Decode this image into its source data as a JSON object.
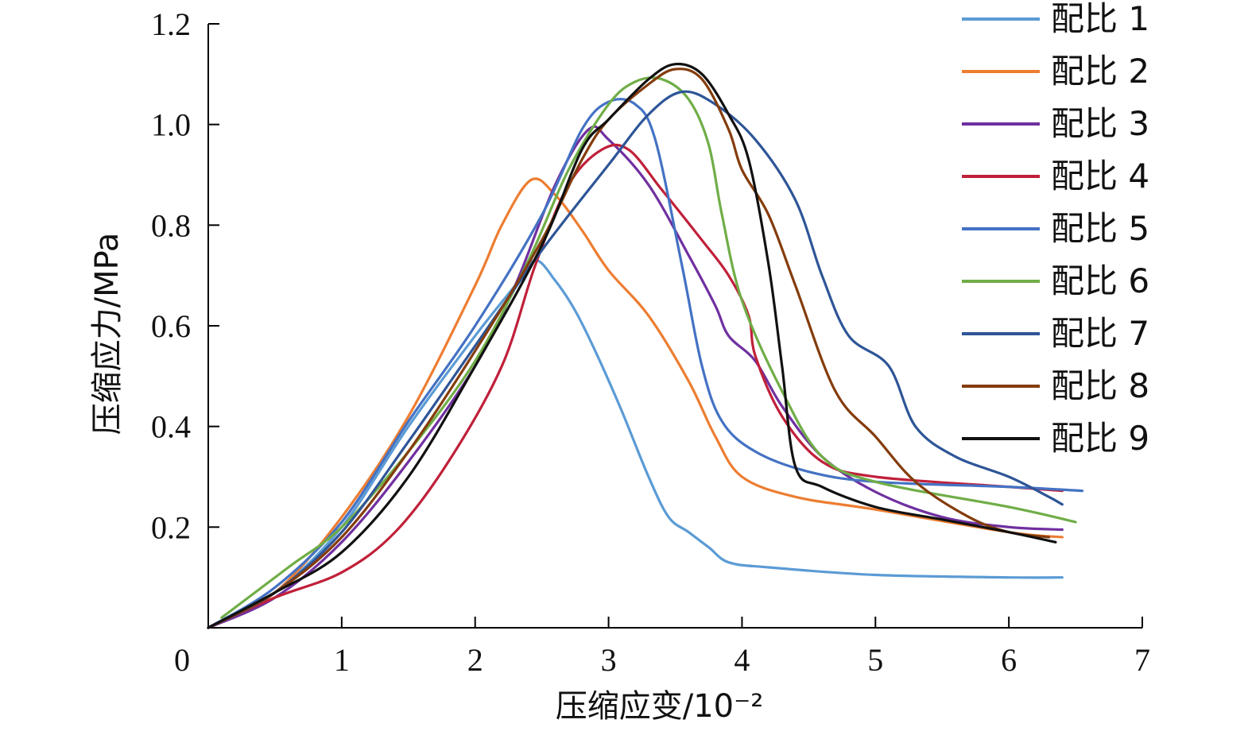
{
  "chart_data": {
    "type": "line",
    "xlabel": "压缩应变/10⁻²",
    "ylabel": "压缩应力/MPa",
    "xlim": [
      0,
      7
    ],
    "ylim": [
      0,
      1.2
    ],
    "x_ticks": [
      "0",
      "1",
      "2",
      "3",
      "4",
      "5",
      "6",
      "7"
    ],
    "y_ticks": [
      "0.2",
      "0.4",
      "0.6",
      "0.8",
      "1.0",
      "1.2"
    ],
    "x_tick_values": [
      0,
      1,
      2,
      3,
      4,
      5,
      6,
      7
    ],
    "y_tick_values": [
      0.2,
      0.4,
      0.6,
      0.8,
      1.0,
      1.2
    ],
    "grid": false,
    "legend_position": "top-right",
    "series": [
      {
        "name": "配比 1",
        "color": "#5b9bd5",
        "points": [
          [
            0,
            0
          ],
          [
            0.5,
            0.07
          ],
          [
            1.0,
            0.2
          ],
          [
            1.5,
            0.4
          ],
          [
            2.0,
            0.58
          ],
          [
            2.3,
            0.68
          ],
          [
            2.45,
            0.73
          ],
          [
            2.6,
            0.69
          ],
          [
            2.75,
            0.63
          ],
          [
            2.9,
            0.55
          ],
          [
            3.1,
            0.43
          ],
          [
            3.3,
            0.3
          ],
          [
            3.45,
            0.22
          ],
          [
            3.6,
            0.19
          ],
          [
            3.75,
            0.16
          ],
          [
            3.9,
            0.13
          ],
          [
            4.2,
            0.12
          ],
          [
            5.0,
            0.105
          ],
          [
            6.0,
            0.1
          ],
          [
            6.4,
            0.1
          ]
        ]
      },
      {
        "name": "配比 2",
        "color": "#ed7d31",
        "points": [
          [
            0,
            0
          ],
          [
            0.5,
            0.07
          ],
          [
            1.0,
            0.22
          ],
          [
            1.5,
            0.42
          ],
          [
            2.0,
            0.68
          ],
          [
            2.2,
            0.8
          ],
          [
            2.42,
            0.89
          ],
          [
            2.6,
            0.86
          ],
          [
            2.8,
            0.79
          ],
          [
            3.0,
            0.71
          ],
          [
            3.3,
            0.62
          ],
          [
            3.6,
            0.49
          ],
          [
            3.8,
            0.38
          ],
          [
            4.0,
            0.3
          ],
          [
            4.4,
            0.26
          ],
          [
            5.0,
            0.235
          ],
          [
            6.0,
            0.19
          ],
          [
            6.4,
            0.18
          ]
        ]
      },
      {
        "name": "配比 3",
        "color": "#7030a0",
        "points": [
          [
            0,
            0
          ],
          [
            0.5,
            0.06
          ],
          [
            1.0,
            0.17
          ],
          [
            1.5,
            0.33
          ],
          [
            2.0,
            0.52
          ],
          [
            2.3,
            0.68
          ],
          [
            2.6,
            0.88
          ],
          [
            2.85,
            0.99
          ],
          [
            3.0,
            0.97
          ],
          [
            3.3,
            0.88
          ],
          [
            3.6,
            0.74
          ],
          [
            3.8,
            0.64
          ],
          [
            3.9,
            0.58
          ],
          [
            4.1,
            0.53
          ],
          [
            4.3,
            0.44
          ],
          [
            4.6,
            0.34
          ],
          [
            5.0,
            0.27
          ],
          [
            5.5,
            0.22
          ],
          [
            6.0,
            0.2
          ],
          [
            6.4,
            0.195
          ]
        ]
      },
      {
        "name": "配比 4",
        "color": "#c0203a",
        "points": [
          [
            0,
            0
          ],
          [
            0.5,
            0.06
          ],
          [
            1.0,
            0.11
          ],
          [
            1.4,
            0.19
          ],
          [
            1.8,
            0.33
          ],
          [
            2.2,
            0.52
          ],
          [
            2.45,
            0.72
          ],
          [
            2.7,
            0.88
          ],
          [
            2.95,
            0.95
          ],
          [
            3.15,
            0.95
          ],
          [
            3.4,
            0.87
          ],
          [
            3.7,
            0.77
          ],
          [
            3.9,
            0.7
          ],
          [
            4.05,
            0.62
          ],
          [
            4.1,
            0.54
          ],
          [
            4.3,
            0.42
          ],
          [
            4.6,
            0.33
          ],
          [
            5.0,
            0.3
          ],
          [
            6.0,
            0.28
          ],
          [
            6.4,
            0.272
          ]
        ]
      },
      {
        "name": "配比 5",
        "color": "#4472c4",
        "points": [
          [
            0,
            0
          ],
          [
            0.5,
            0.08
          ],
          [
            1.0,
            0.21
          ],
          [
            1.5,
            0.41
          ],
          [
            2.0,
            0.6
          ],
          [
            2.5,
            0.82
          ],
          [
            2.8,
            0.99
          ],
          [
            3.0,
            1.045
          ],
          [
            3.2,
            1.04
          ],
          [
            3.35,
            0.97
          ],
          [
            3.55,
            0.72
          ],
          [
            3.7,
            0.52
          ],
          [
            3.85,
            0.41
          ],
          [
            4.1,
            0.35
          ],
          [
            4.5,
            0.31
          ],
          [
            5.0,
            0.29
          ],
          [
            6.0,
            0.28
          ],
          [
            6.55,
            0.272
          ]
        ]
      },
      {
        "name": "配比 6",
        "color": "#70ad47",
        "points": [
          [
            0.1,
            0.02
          ],
          [
            0.6,
            0.12
          ],
          [
            1.0,
            0.2
          ],
          [
            1.5,
            0.35
          ],
          [
            2.0,
            0.53
          ],
          [
            2.4,
            0.73
          ],
          [
            2.7,
            0.91
          ],
          [
            3.0,
            1.04
          ],
          [
            3.2,
            1.085
          ],
          [
            3.4,
            1.09
          ],
          [
            3.6,
            1.05
          ],
          [
            3.75,
            0.96
          ],
          [
            3.85,
            0.82
          ],
          [
            4.0,
            0.65
          ],
          [
            4.3,
            0.47
          ],
          [
            4.6,
            0.34
          ],
          [
            5.0,
            0.29
          ],
          [
            6.0,
            0.24
          ],
          [
            6.5,
            0.21
          ]
        ]
      },
      {
        "name": "配比 7",
        "color": "#2e5597",
        "points": [
          [
            0,
            0
          ],
          [
            0.5,
            0.07
          ],
          [
            1.0,
            0.19
          ],
          [
            1.5,
            0.37
          ],
          [
            2.0,
            0.56
          ],
          [
            2.5,
            0.75
          ],
          [
            3.0,
            0.92
          ],
          [
            3.3,
            1.02
          ],
          [
            3.55,
            1.065
          ],
          [
            3.8,
            1.04
          ],
          [
            4.1,
            0.97
          ],
          [
            4.4,
            0.85
          ],
          [
            4.6,
            0.7
          ],
          [
            4.8,
            0.58
          ],
          [
            5.1,
            0.52
          ],
          [
            5.3,
            0.4
          ],
          [
            5.6,
            0.34
          ],
          [
            6.0,
            0.3
          ],
          [
            6.3,
            0.26
          ],
          [
            6.4,
            0.245
          ]
        ]
      },
      {
        "name": "配比 8",
        "color": "#843c0c",
        "points": [
          [
            0,
            0
          ],
          [
            0.5,
            0.07
          ],
          [
            1.0,
            0.18
          ],
          [
            1.5,
            0.35
          ],
          [
            2.0,
            0.55
          ],
          [
            2.5,
            0.77
          ],
          [
            2.8,
            0.93
          ],
          [
            3.0,
            1.01
          ],
          [
            3.3,
            1.08
          ],
          [
            3.5,
            1.11
          ],
          [
            3.7,
            1.09
          ],
          [
            3.9,
            0.99
          ],
          [
            4.0,
            0.91
          ],
          [
            4.2,
            0.82
          ],
          [
            4.4,
            0.68
          ],
          [
            4.7,
            0.47
          ],
          [
            5.0,
            0.38
          ],
          [
            5.3,
            0.29
          ],
          [
            5.7,
            0.22
          ],
          [
            6.0,
            0.19
          ],
          [
            6.3,
            0.18
          ]
        ]
      },
      {
        "name": "配比 9",
        "color": "#111111",
        "points": [
          [
            0,
            0
          ],
          [
            0.5,
            0.07
          ],
          [
            1.0,
            0.15
          ],
          [
            1.5,
            0.3
          ],
          [
            2.0,
            0.52
          ],
          [
            2.5,
            0.76
          ],
          [
            2.8,
            0.95
          ],
          [
            3.0,
            1.01
          ],
          [
            3.3,
            1.09
          ],
          [
            3.5,
            1.12
          ],
          [
            3.7,
            1.1
          ],
          [
            3.9,
            1.02
          ],
          [
            4.05,
            0.93
          ],
          [
            4.2,
            0.72
          ],
          [
            4.3,
            0.52
          ],
          [
            4.4,
            0.32
          ],
          [
            4.6,
            0.28
          ],
          [
            5.0,
            0.24
          ],
          [
            5.5,
            0.215
          ],
          [
            6.0,
            0.19
          ],
          [
            6.35,
            0.17
          ]
        ]
      }
    ]
  }
}
